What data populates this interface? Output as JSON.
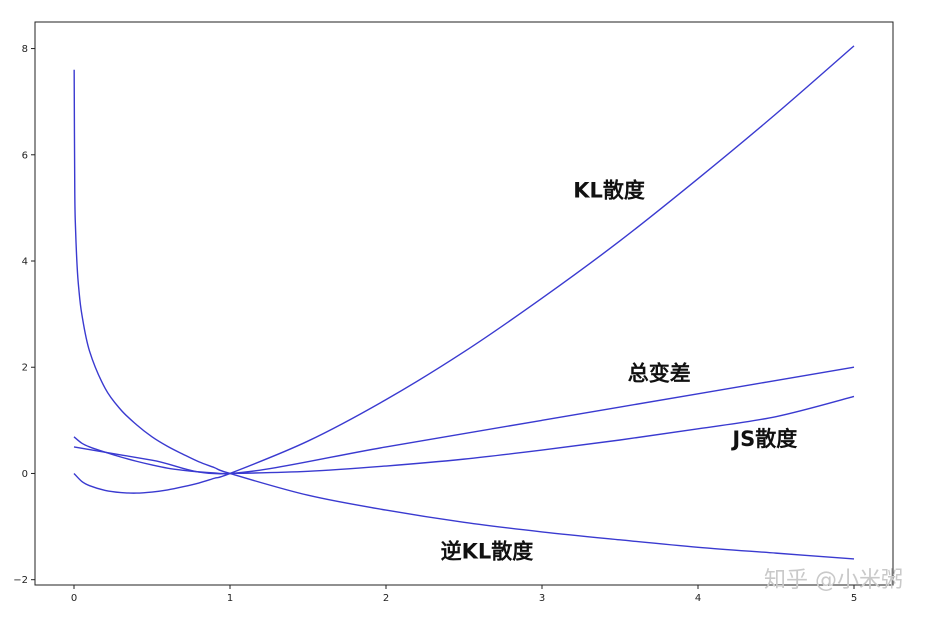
{
  "chart_data": {
    "type": "line",
    "title": "",
    "xlabel": "",
    "ylabel": "",
    "xlim": [
      -0.25,
      5.25
    ],
    "ylim": [
      -2.1,
      8.5
    ],
    "x_ticks": [
      0,
      1,
      2,
      3,
      4,
      5
    ],
    "y_ticks": [
      -2,
      0,
      2,
      4,
      6,
      8
    ],
    "x_tick_labels": [
      "0",
      "1",
      "2",
      "3",
      "4",
      "5"
    ],
    "y_tick_labels": [
      "−2",
      "0",
      "2",
      "4",
      "6",
      "8"
    ],
    "grid": false,
    "line_color": "#3a3ad0",
    "series": [
      {
        "name": "KL散度",
        "x": [
          0.0,
          0.05,
          0.1,
          0.2,
          0.3,
          0.4,
          0.5,
          0.6,
          0.7,
          0.8,
          0.9,
          1.0,
          1.5,
          2.0,
          2.5,
          3.0,
          3.5,
          4.0,
          4.5,
          5.0
        ],
        "y": [
          0.0,
          -0.15,
          -0.23,
          -0.32,
          -0.36,
          -0.37,
          -0.35,
          -0.31,
          -0.25,
          -0.18,
          -0.09,
          0.0,
          0.61,
          1.39,
          2.29,
          3.3,
          4.38,
          5.55,
          6.77,
          8.05
        ]
      },
      {
        "name": "逆KL散度",
        "x": [
          0.001,
          0.005,
          0.01,
          0.02,
          0.03,
          0.05,
          0.1,
          0.2,
          0.3,
          0.4,
          0.5,
          0.6,
          0.7,
          0.8,
          0.9,
          1.0,
          1.5,
          2.0,
          2.5,
          3.0,
          3.5,
          4.0,
          4.5,
          5.0
        ],
        "y": [
          7.6,
          5.3,
          4.6,
          3.9,
          3.5,
          3.0,
          2.3,
          1.6,
          1.2,
          0.92,
          0.69,
          0.51,
          0.36,
          0.22,
          0.11,
          0.0,
          -0.41,
          -0.69,
          -0.92,
          -1.1,
          -1.25,
          -1.39,
          -1.5,
          -1.61
        ]
      },
      {
        "name": "总变差",
        "x": [
          0.0,
          0.5,
          1.0,
          2.0,
          3.0,
          4.0,
          5.0
        ],
        "y": [
          0.5,
          0.25,
          0.0,
          0.5,
          1.0,
          1.5,
          2.0
        ]
      },
      {
        "name": "JS散度",
        "x": [
          0.0,
          0.05,
          0.1,
          0.2,
          0.3,
          0.4,
          0.5,
          0.6,
          0.7,
          0.8,
          0.9,
          1.0,
          1.5,
          2.0,
          2.5,
          3.0,
          3.5,
          4.0,
          4.5,
          5.0
        ],
        "y": [
          0.69,
          0.57,
          0.5,
          0.4,
          0.31,
          0.23,
          0.16,
          0.1,
          0.06,
          0.03,
          0.01,
          0.0,
          0.04,
          0.14,
          0.27,
          0.44,
          0.63,
          0.84,
          1.07,
          1.45
        ]
      }
    ],
    "annotations": [
      {
        "text": "KL散度",
        "x": 3.2,
        "y": 5.2
      },
      {
        "text": "总变差",
        "x": 3.55,
        "y": 1.75
      },
      {
        "text": "JS散度",
        "x": 4.22,
        "y": 0.52
      },
      {
        "text": "逆KL散度",
        "x": 2.35,
        "y": -1.6
      }
    ]
  },
  "watermark": "知乎 @小米粥"
}
